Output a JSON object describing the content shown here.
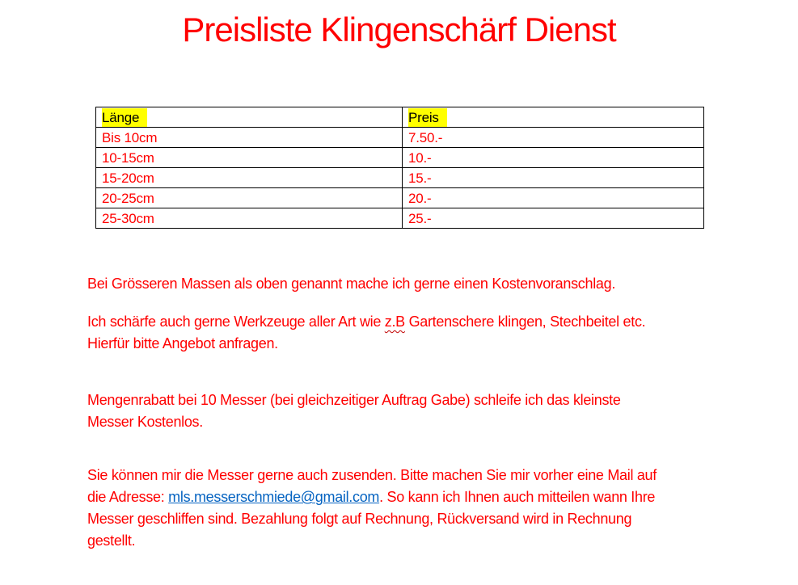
{
  "title": "Preisliste Klingenschärf Dienst",
  "colors": {
    "text_red": "#ff0000",
    "highlight_yellow": "#ffff00",
    "link_blue": "#0563c1",
    "spellcheck_red": "#c00000",
    "table_border": "#000000"
  },
  "table": {
    "headers": [
      "Länge",
      "Preis"
    ],
    "rows": [
      [
        "Bis 10cm",
        "7.50.-"
      ],
      [
        "10-15cm",
        "10.-"
      ],
      [
        "15-20cm",
        "15.-"
      ],
      [
        "20-25cm",
        "20.-"
      ],
      [
        "25-30cm",
        "25.-"
      ]
    ]
  },
  "paragraphs": [
    {
      "name": "paragraph-kostenvoranschlag",
      "lines": [
        [
          {
            "text": "Bei Grösseren Massen als oben genannt mache ich gerne einen Kostenvoranschlag."
          }
        ]
      ]
    },
    {
      "name": "paragraph-werkzeuge",
      "lines": [
        [
          {
            "text": "Ich schärfe auch gerne Werkzeuge aller Art wie "
          },
          {
            "text": "z.B",
            "style": "wavy"
          },
          {
            "text": " Gartenschere klingen, Stechbeitel etc."
          }
        ],
        [
          {
            "text": "Hierfür bitte Angebot anfragen."
          }
        ]
      ]
    },
    {
      "name": "paragraph-mengenrabatt",
      "lines": [
        [
          {
            "text": "Mengenrabatt bei 10 Messer (bei gleichzeitiger Auftrag Gabe) schleife ich das kleinste"
          }
        ],
        [
          {
            "text": "Messer Kostenlos."
          }
        ]
      ]
    },
    {
      "name": "paragraph-zusenden",
      "lines": [
        [
          {
            "text": "Sie können mir die Messer gerne auch zusenden. Bitte machen Sie mir vorher eine Mail auf"
          }
        ],
        [
          {
            "text": "die Adresse: "
          },
          {
            "text": "mls.messerschmiede@gmail.com",
            "style": "link"
          },
          {
            "text": ". So kann ich Ihnen auch mitteilen wann Ihre"
          }
        ],
        [
          {
            "text": "Messer geschliffen sind. Bezahlung folgt auf Rechnung, Rückversand wird in Rechnung"
          }
        ],
        [
          {
            "text": "gestellt."
          }
        ]
      ]
    }
  ]
}
